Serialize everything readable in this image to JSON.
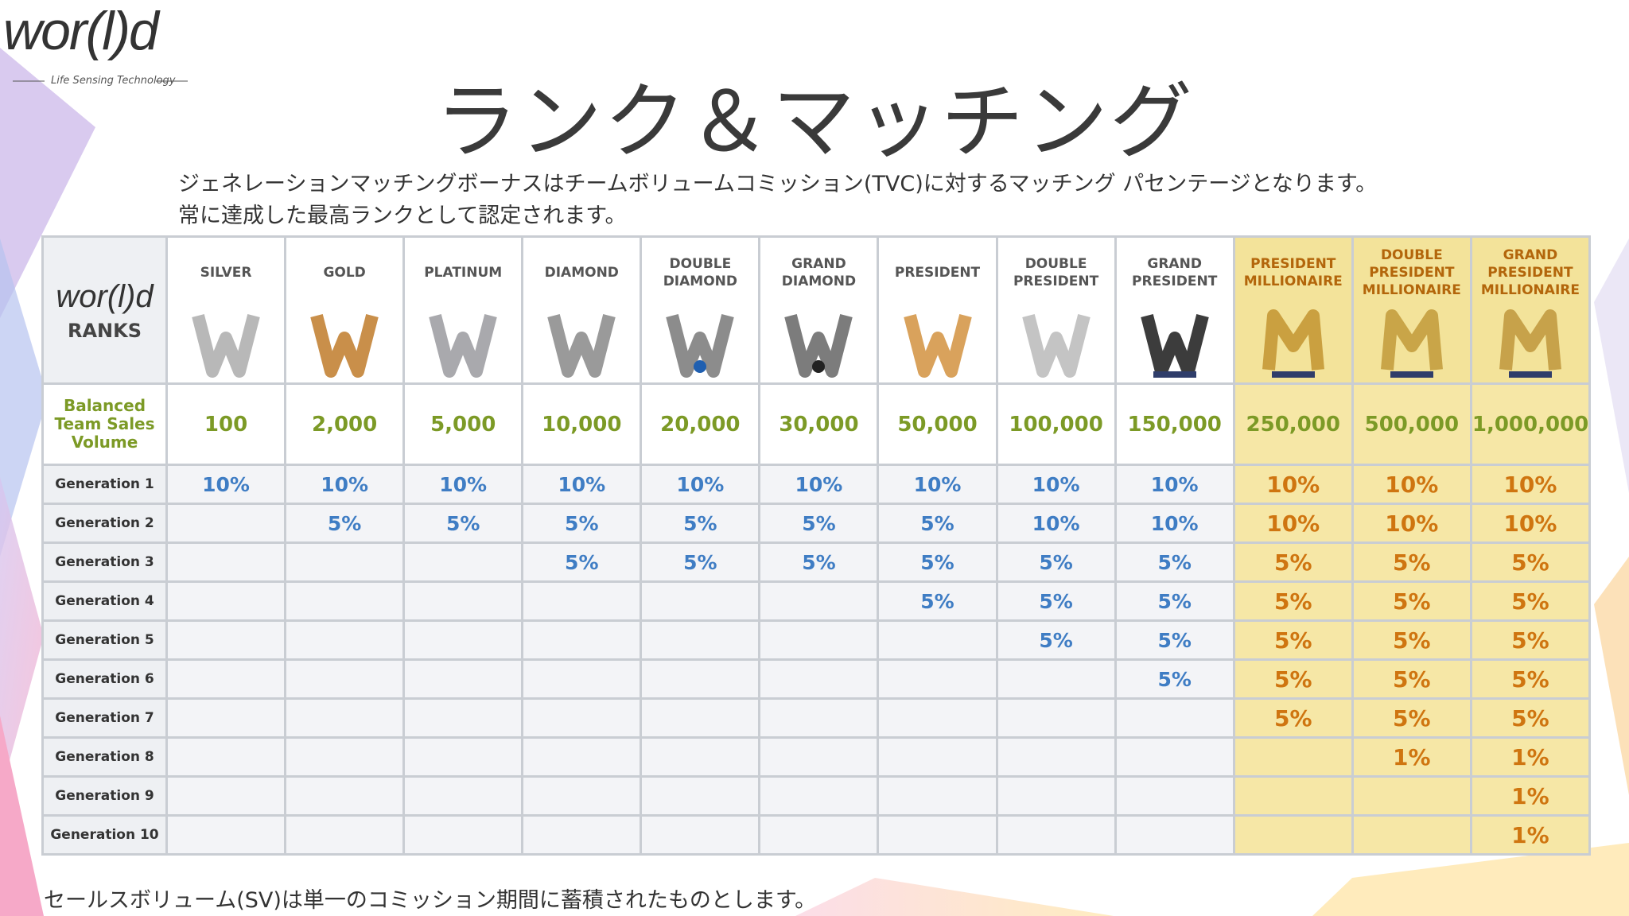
{
  "logo": {
    "wordmark": "wor(l)d",
    "tagline": "Life Sensing Technology"
  },
  "title": "ランク＆マッチング",
  "description": [
    "ジェネレーションマッチングボーナスはチームボリュームコミッション(TVC)に対するマッチング パセンテージとなります。",
    "常に達成した最高ランクとして認定されます。"
  ],
  "table": {
    "corner": {
      "logo": "wor(l)d",
      "label": "RANKS"
    },
    "ranks": [
      "SILVER",
      "GOLD",
      "PLATINUM",
      "DIAMOND",
      "DOUBLE DIAMOND",
      "GRAND DIAMOND",
      "PRESIDENT",
      "DOUBLE PRESIDENT",
      "GRAND PRESIDENT",
      "PRESIDENT MILLIONAIRE",
      "DOUBLE PRESIDENT MILLIONAIRE",
      "GRAND PRESIDENT MILLIONAIRE"
    ],
    "volume_label": "Balanced Team Sales Volume",
    "volumes": [
      "100",
      "2,000",
      "5,000",
      "10,000",
      "20,000",
      "30,000",
      "50,000",
      "100,000",
      "150,000",
      "250,000",
      "500,000",
      "1,000,000"
    ],
    "rows": [
      {
        "label": "Generation 1",
        "cells": [
          "10%",
          "10%",
          "10%",
          "10%",
          "10%",
          "10%",
          "10%",
          "10%",
          "10%",
          "10%",
          "10%",
          "10%"
        ]
      },
      {
        "label": "Generation 2",
        "cells": [
          null,
          "5%",
          "5%",
          "5%",
          "5%",
          "5%",
          "5%",
          "10%",
          "10%",
          "10%",
          "10%",
          "10%"
        ]
      },
      {
        "label": "Generation 3",
        "cells": [
          null,
          null,
          null,
          "5%",
          "5%",
          "5%",
          "5%",
          "5%",
          "5%",
          "5%",
          "5%",
          "5%"
        ]
      },
      {
        "label": "Generation 4",
        "cells": [
          null,
          null,
          null,
          null,
          null,
          null,
          "5%",
          "5%",
          "5%",
          "5%",
          "5%",
          "5%"
        ]
      },
      {
        "label": "Generation 5",
        "cells": [
          null,
          null,
          null,
          null,
          null,
          null,
          null,
          "5%",
          "5%",
          "5%",
          "5%",
          "5%"
        ]
      },
      {
        "label": "Generation 6",
        "cells": [
          null,
          null,
          null,
          null,
          null,
          null,
          null,
          null,
          "5%",
          "5%",
          "5%",
          "5%"
        ]
      },
      {
        "label": "Generation 7",
        "cells": [
          null,
          null,
          null,
          null,
          null,
          null,
          null,
          null,
          null,
          "5%",
          "5%",
          "5%"
        ]
      },
      {
        "label": "Generation 8",
        "cells": [
          null,
          null,
          null,
          null,
          null,
          null,
          null,
          null,
          null,
          null,
          "1%",
          "1%"
        ]
      },
      {
        "label": "Generation 9",
        "cells": [
          null,
          null,
          null,
          null,
          null,
          null,
          null,
          null,
          null,
          null,
          null,
          "1%"
        ]
      },
      {
        "label": "Generation 10",
        "cells": [
          null,
          null,
          null,
          null,
          null,
          null,
          null,
          null,
          null,
          null,
          null,
          "1%"
        ]
      }
    ]
  },
  "footnote": "セールスボリューム(SV)は単一のコミッション期間に蓄積されたものとします。"
}
